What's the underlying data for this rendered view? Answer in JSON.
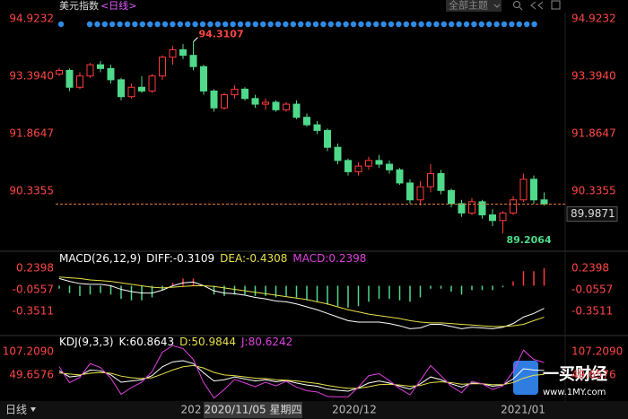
{
  "header": {
    "title": "美元指数",
    "period": "<日线>",
    "theme_button": "全部主题"
  },
  "chart_data": [
    {
      "type": "candlestick",
      "open": [
        93.45,
        93.55,
        93.1,
        93.4,
        93.7,
        93.6,
        93.3,
        92.85,
        93.1,
        93.0,
        93.4,
        93.9,
        94.1,
        93.95,
        93.65,
        93.0,
        92.55,
        92.9,
        93.05,
        92.8,
        92.65,
        92.7,
        92.5,
        92.65,
        92.3,
        92.1,
        91.95,
        91.5,
        91.15,
        90.85,
        91.0,
        91.15,
        91.05,
        90.9,
        90.55,
        90.1,
        90.45,
        90.8,
        90.35,
        90.0,
        89.75,
        90.05,
        89.7,
        89.55,
        89.75,
        90.1,
        90.65,
        90.1
      ],
      "high": [
        93.62,
        93.6,
        93.5,
        93.75,
        93.8,
        93.7,
        93.35,
        93.2,
        93.4,
        93.45,
        93.95,
        94.2,
        94.25,
        94.3107,
        93.7,
        93.05,
        92.95,
        93.15,
        93.1,
        92.9,
        92.8,
        92.75,
        92.7,
        92.75,
        92.4,
        92.2,
        92.0,
        91.6,
        91.2,
        91.1,
        91.25,
        91.3,
        91.15,
        90.95,
        90.65,
        90.6,
        91.05,
        90.9,
        90.4,
        90.1,
        90.15,
        90.1,
        89.85,
        89.8,
        90.2,
        90.8,
        90.75,
        90.3
      ],
      "low": [
        93.4,
        93.0,
        93.05,
        93.35,
        93.5,
        93.2,
        92.75,
        92.8,
        92.95,
        92.95,
        93.3,
        93.7,
        93.85,
        93.55,
        92.9,
        92.45,
        92.5,
        92.8,
        92.75,
        92.55,
        92.5,
        92.45,
        92.45,
        92.25,
        92.05,
        91.85,
        91.4,
        91.05,
        90.75,
        90.75,
        90.9,
        90.95,
        90.8,
        90.5,
        90.0,
        89.95,
        90.3,
        90.25,
        89.9,
        89.65,
        89.7,
        89.6,
        89.4,
        89.2064,
        89.7,
        90.05,
        90.0,
        89.95
      ],
      "close": [
        93.55,
        93.1,
        93.4,
        93.7,
        93.6,
        93.3,
        92.85,
        93.1,
        93.0,
        93.4,
        93.9,
        94.1,
        93.95,
        93.65,
        93.0,
        92.55,
        92.9,
        93.05,
        92.8,
        92.65,
        92.7,
        92.5,
        92.65,
        92.3,
        92.1,
        91.95,
        91.5,
        91.15,
        90.85,
        91.0,
        91.15,
        91.05,
        90.9,
        90.55,
        90.1,
        90.45,
        90.8,
        90.35,
        90.0,
        89.75,
        90.05,
        89.7,
        89.55,
        89.75,
        90.1,
        90.65,
        90.1,
        89.9871
      ],
      "up_color": "#ff3b3b",
      "down_color": "#4fd98a",
      "last_line_color": "#e07a3a",
      "ylim": [
        88.78,
        95.09
      ],
      "yticks": [
        94.9232,
        {
          "value": 93.394,
          "label": "93.3940"
        },
        91.8647,
        90.3355
      ]
    },
    {
      "type": "macd",
      "title": "MACD(26,12,9)",
      "up_color": "#ff3b3b",
      "down_color": "#4fd98a",
      "series": [
        {
          "name": "DIFF:",
          "color": "#ffffff",
          "values": [
            0.1,
            0.06,
            0.03,
            0.02,
            0.02,
            0.0,
            -0.05,
            -0.08,
            -0.1,
            -0.1,
            -0.06,
            0.0,
            0.04,
            0.05,
            0.0,
            -0.07,
            -0.1,
            -0.11,
            -0.13,
            -0.16,
            -0.18,
            -0.21,
            -0.22,
            -0.25,
            -0.29,
            -0.33,
            -0.38,
            -0.43,
            -0.48,
            -0.5,
            -0.5,
            -0.5,
            -0.52,
            -0.55,
            -0.59,
            -0.58,
            -0.53,
            -0.53,
            -0.56,
            -0.59,
            -0.57,
            -0.58,
            -0.59,
            -0.57,
            -0.52,
            -0.43,
            -0.38,
            -0.3109
          ]
        },
        {
          "name": "DEA:",
          "color": "#e8e04a",
          "values": [
            0.12,
            0.11,
            0.1,
            0.08,
            0.07,
            0.06,
            0.04,
            0.02,
            0.0,
            -0.02,
            -0.03,
            -0.02,
            -0.01,
            0.0,
            0.0,
            -0.01,
            -0.03,
            -0.05,
            -0.07,
            -0.09,
            -0.11,
            -0.13,
            -0.15,
            -0.17,
            -0.19,
            -0.22,
            -0.25,
            -0.29,
            -0.33,
            -0.36,
            -0.39,
            -0.41,
            -0.43,
            -0.45,
            -0.48,
            -0.5,
            -0.51,
            -0.51,
            -0.52,
            -0.53,
            -0.54,
            -0.55,
            -0.56,
            -0.56,
            -0.55,
            -0.53,
            -0.48,
            -0.4308
          ]
        },
        {
          "name": "MACD:",
          "color": "#e040e0",
          "bars": true,
          "values": [
            -0.04,
            -0.1,
            -0.14,
            -0.12,
            -0.1,
            -0.12,
            -0.18,
            -0.2,
            -0.2,
            -0.16,
            -0.06,
            0.04,
            0.1,
            0.1,
            0.0,
            -0.12,
            -0.14,
            -0.12,
            -0.12,
            -0.14,
            -0.14,
            -0.16,
            -0.14,
            -0.16,
            -0.2,
            -0.22,
            -0.26,
            -0.28,
            -0.3,
            -0.28,
            -0.22,
            -0.18,
            -0.18,
            -0.2,
            -0.22,
            -0.16,
            -0.04,
            -0.04,
            -0.08,
            -0.12,
            -0.06,
            -0.06,
            -0.06,
            -0.02,
            0.06,
            0.2,
            0.2,
            0.2398
          ]
        }
      ],
      "ylim": [
        -0.66,
        0.45
      ],
      "yticks": [
        0.2398,
        -0.0557,
        -0.3511
      ]
    },
    {
      "type": "kdj",
      "title": "KDJ(9,3,3)",
      "series": [
        {
          "name": "K:",
          "color": "#ffffff",
          "values": [
            60,
            45,
            48,
            62,
            60,
            50,
            32,
            35,
            38,
            48,
            70,
            82,
            85,
            78,
            55,
            35,
            38,
            45,
            40,
            35,
            38,
            33,
            36,
            30,
            25,
            22,
            15,
            12,
            10,
            18,
            30,
            35,
            30,
            22,
            15,
            28,
            45,
            38,
            28,
            20,
            30,
            28,
            22,
            25,
            40,
            65,
            62,
            60.8643
          ]
        },
        {
          "name": "D:",
          "color": "#e8e04a",
          "values": [
            55,
            52,
            50,
            54,
            56,
            54,
            47,
            43,
            41,
            43,
            52,
            62,
            70,
            73,
            67,
            56,
            50,
            48,
            45,
            42,
            41,
            38,
            37,
            35,
            32,
            29,
            24,
            20,
            17,
            17,
            21,
            26,
            27,
            25,
            22,
            24,
            31,
            33,
            31,
            27,
            28,
            28,
            26,
            26,
            31,
            42,
            49,
            50.9844
          ]
        },
        {
          "name": "J:",
          "color": "#e040e0",
          "values": [
            70,
            31,
            44,
            78,
            68,
            42,
            2,
            19,
            32,
            58,
            106,
            122,
            115,
            88,
            31,
            -7,
            14,
            39,
            30,
            21,
            32,
            23,
            34,
            20,
            11,
            8,
            -3,
            -4,
            -4,
            20,
            48,
            53,
            36,
            16,
            1,
            36,
            73,
            48,
            22,
            6,
            34,
            28,
            14,
            23,
            58,
            111,
            88,
            80.6242
          ]
        }
      ],
      "ylim": [
        -10,
        138
      ],
      "yticks": [
        {
          "value": 107.209,
          "label": "107.2090"
        },
        49.6576
      ]
    }
  ],
  "footer": {
    "period_tab": "日线",
    "x_labels": [
      "202",
      "2020/12",
      "2021/01"
    ],
    "crosshair_date": "2020/11/05 星期四"
  },
  "watermark": {
    "name": "一买财经",
    "url": "www.1MY.com"
  }
}
